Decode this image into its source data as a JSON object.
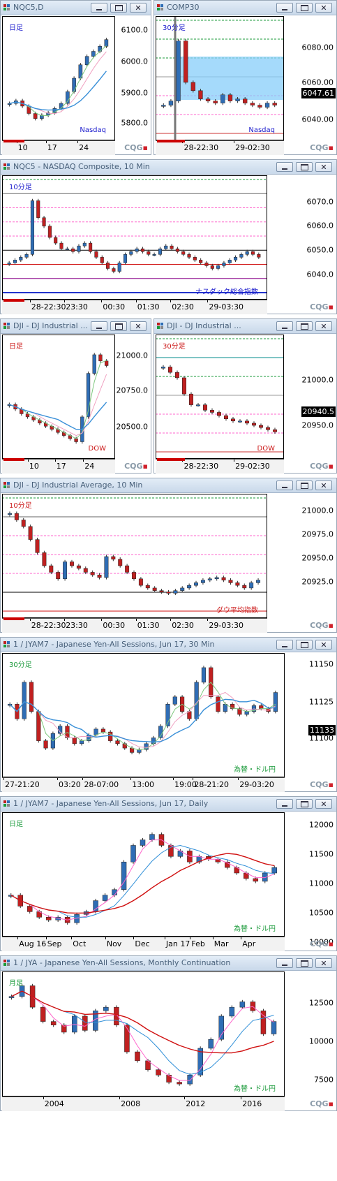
{
  "colors": {
    "up": "#2f6db5",
    "down": "#c02020",
    "green": "#1a9a3a",
    "pink": "#ff66cc",
    "teal": "#008b8b"
  },
  "windows": [
    {
      "id": "w1",
      "title": "NQC5,D",
      "label": "日足",
      "label_color": "#1a1acc",
      "name_label": "Nasdaq",
      "name_color": "#1a1acc",
      "yticks": [
        "6100.0",
        "6000.0",
        "5900.0",
        "5800.0"
      ],
      "xticks": [
        "10",
        "17",
        "24"
      ]
    },
    {
      "id": "w2",
      "title": "COMP30",
      "label": "30分足",
      "label_color": "#1a1acc",
      "name_label": "Nasdaq",
      "name_color": "#1a1acc",
      "yticks": [
        "6080.00",
        "6060.00",
        "6040.00"
      ],
      "price": "6047.61",
      "xticks": [
        "28-22:30",
        "29-02:30"
      ]
    },
    {
      "id": "w3",
      "title": "NQC5 - NASDAQ Composite, 10 Min",
      "label": "10分足",
      "label_color": "#1a1acc",
      "name_label": "ナスダック総合指数",
      "name_color": "#1a1acc",
      "yticks": [
        "6070.0",
        "6060.0",
        "6050.0",
        "6040.0"
      ],
      "xticks": [
        "28-22:30",
        "23:30",
        "00:30",
        "01:30",
        "02:30",
        "29-03:30"
      ]
    },
    {
      "id": "w4",
      "title": "DJI - DJ Industrial ...",
      "label": "日足",
      "label_color": "#cc1a1a",
      "name_label": "DOW",
      "name_color": "#cc1a1a",
      "yticks": [
        "21000.0",
        "20750.0",
        "20500.0"
      ],
      "xticks": [
        "10",
        "17",
        "24"
      ]
    },
    {
      "id": "w5",
      "title": "DJI - DJ Industrial ...",
      "label": "30分足",
      "label_color": "#cc1a1a",
      "name_label": "DOW",
      "name_color": "#cc1a1a",
      "yticks": [
        "21000.0",
        "20950.0"
      ],
      "price": "20940.5",
      "xticks": [
        "28-22:30",
        "29-02:30"
      ]
    },
    {
      "id": "w6",
      "title": "DJI - DJ Industrial Average, 10 Min",
      "label": "10分足",
      "label_color": "#cc1a1a",
      "name_label": "ダウ平均指数",
      "name_color": "#cc1a1a",
      "yticks": [
        "21000.0",
        "20975.0",
        "20950.0",
        "20925.0"
      ],
      "xticks": [
        "28-22:30",
        "23:30",
        "00:30",
        "01:30",
        "02:30",
        "29-03:30"
      ]
    },
    {
      "id": "w7",
      "title": "1 / JYAM7 - Japanese Yen-All Sessions, Jun 17, 30 Min",
      "label": "30分足",
      "label_color": "#1a9a3a",
      "name_label": "為替・ドル円",
      "name_color": "#1a9a3a",
      "yticks": [
        "11150",
        "11125",
        "11100"
      ],
      "price": "11133",
      "xticks": [
        "27-21:20",
        "03:20",
        "28-07:00",
        "13:00",
        "19:00",
        "28-21:20",
        "29-03:20"
      ]
    },
    {
      "id": "w8",
      "title": "1 / JYAM7 - Japanese Yen-All Sessions, Jun 17, Daily",
      "label": "日足",
      "label_color": "#1a9a3a",
      "name_label": "為替・ドル円",
      "name_color": "#1a9a3a",
      "yticks": [
        "12000",
        "11500",
        "11000",
        "10500",
        "10000"
      ],
      "xticks": [
        "Aug 16",
        "Sep",
        "Oct",
        "Nov",
        "Dec",
        "Jan 17",
        "Feb",
        "Mar",
        "Apr"
      ]
    },
    {
      "id": "w9",
      "title": "1 / JYA - Japanese Yen-All Sessions, Monthly Continuation",
      "label": "月足",
      "label_color": "#1a9a3a",
      "name_label": "為替・ドル円",
      "name_color": "#1a9a3a",
      "yticks": [
        "12500",
        "10000",
        "7500"
      ],
      "xticks": [
        "2004",
        "2008",
        "2012",
        "2016"
      ]
    }
  ],
  "chart_data": [
    {
      "type": "candlestick",
      "window": "NQC5,D",
      "ylim": [
        5760,
        6130
      ],
      "closes": [
        5870,
        5878,
        5862,
        5840,
        5825,
        5835,
        5842,
        5855,
        5870,
        5905,
        5945,
        5985,
        6010,
        6025,
        6040,
        6060
      ],
      "ma_colors": [
        "green",
        "pink"
      ]
    },
    {
      "type": "candlestick",
      "window": "COMP30",
      "ylim": [
        6030,
        6090
      ],
      "closes": [
        6047,
        6049,
        6078,
        6058,
        6054,
        6050,
        6049,
        6048,
        6052,
        6049,
        6050,
        6048,
        6047,
        6046,
        6048,
        6047
      ]
    },
    {
      "type": "candlestick",
      "window": "NASDAQ Composite, 10 Min",
      "ylim": [
        6033,
        6077
      ],
      "closes": [
        6046,
        6047,
        6048,
        6049,
        6068,
        6062,
        6059,
        6055,
        6053,
        6051,
        6051,
        6050,
        6052,
        6053,
        6050,
        6048,
        6046,
        6044,
        6043,
        6046,
        6049,
        6050,
        6051,
        6050,
        6049,
        6049,
        6051,
        6052,
        6051,
        6050,
        6049,
        6048,
        6047,
        6046,
        6045,
        6044,
        6045,
        6046,
        6047,
        6048,
        6049,
        6050,
        6049,
        6048
      ]
    },
    {
      "type": "candlestick",
      "window": "DJI Daily",
      "ylim": [
        20350,
        21150
      ],
      "closes": [
        20700,
        20670,
        20640,
        20620,
        20600,
        20580,
        20560,
        20540,
        20520,
        20500,
        20480,
        20460,
        20620,
        20900,
        21020,
        20980,
        20950
      ]
    },
    {
      "type": "candlestick",
      "window": "DJI 30 Min",
      "ylim": [
        20915,
        21030
      ],
      "closes": [
        21000,
        20995,
        20990,
        20975,
        20965,
        20965,
        20960,
        20958,
        20955,
        20952,
        20950,
        20950,
        20948,
        20946,
        20944,
        20942,
        20940
      ]
    },
    {
      "type": "candlestick",
      "window": "DJI 10 Min",
      "ylim": [
        20915,
        21010
      ],
      "closes": [
        20995,
        20990,
        20985,
        20975,
        20965,
        20955,
        20950,
        20945,
        20958,
        20955,
        20953,
        20950,
        20948,
        20946,
        20962,
        20960,
        20955,
        20950,
        20945,
        20940,
        20938,
        20936,
        20935,
        20934,
        20936,
        20938,
        20940,
        20942,
        20944,
        20945,
        20946,
        20944,
        20942,
        20940,
        20938,
        20942,
        20944
      ]
    },
    {
      "type": "candlestick",
      "window": "JYAM7 30 Min",
      "ylim": [
        11075,
        11160
      ],
      "closes": [
        11125,
        11115,
        11140,
        11120,
        11100,
        11095,
        11105,
        11110,
        11102,
        11098,
        11100,
        11104,
        11108,
        11106,
        11100,
        11098,
        11095,
        11092,
        11094,
        11098,
        11102,
        11110,
        11125,
        11130,
        11120,
        11115,
        11140,
        11150,
        11130,
        11120,
        11125,
        11122,
        11118,
        11120,
        11124,
        11122,
        11120,
        11133
      ]
    },
    {
      "type": "candlestick",
      "window": "JYAM7 Daily",
      "ylim": [
        9850,
        12100
      ],
      "closes": [
        10600,
        10400,
        10300,
        10200,
        10150,
        10200,
        10100,
        10250,
        10300,
        10500,
        10600,
        10700,
        11200,
        11500,
        11600,
        11700,
        11500,
        11300,
        11400,
        11200,
        11300,
        11250,
        11200,
        11100,
        11000,
        10900,
        10850,
        11000,
        11100
      ]
    },
    {
      "type": "candlestick",
      "window": "JYA Monthly",
      "ylim": [
        7000,
        14000
      ],
      "closes": [
        12600,
        13200,
        12000,
        11200,
        11000,
        10600,
        11500,
        10700,
        11800,
        12000,
        11000,
        9500,
        9000,
        8500,
        8200,
        7800,
        7700,
        8200,
        9700,
        10200,
        11500,
        12000,
        12300,
        11800,
        10500,
        11200
      ]
    }
  ]
}
